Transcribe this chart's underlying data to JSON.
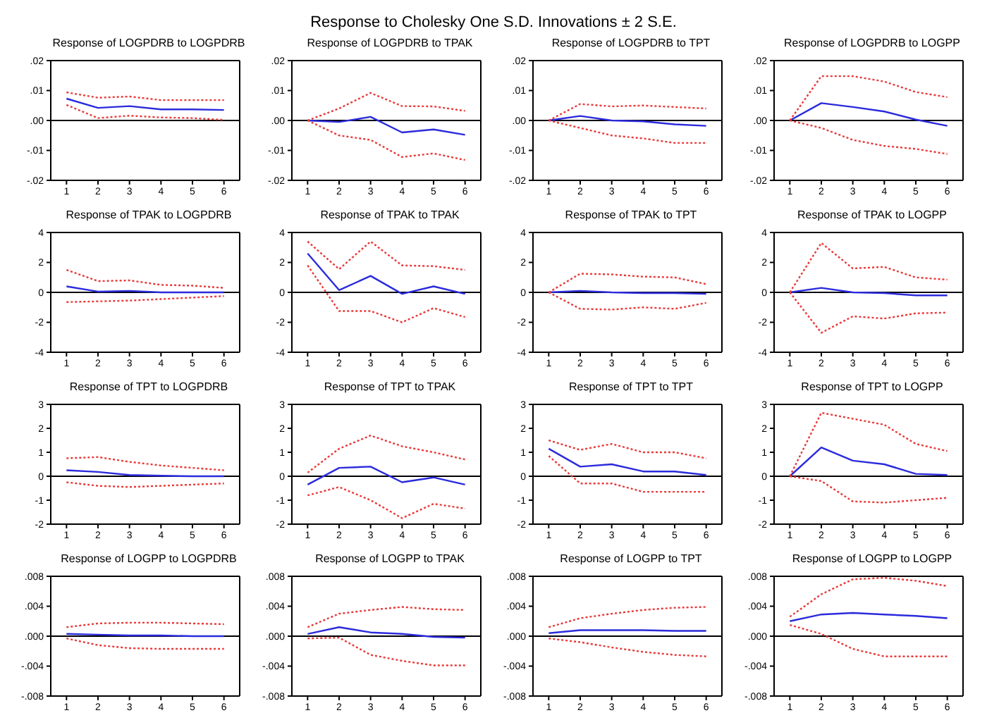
{
  "chart_data": [
    {
      "type": "line",
      "title": "Response of LOGPDRB to LOGPDRB",
      "annotations": [
        "Response to Cholesky One S.D. Innovations ± 2 S.E."
      ],
      "x": [
        1,
        2,
        3,
        4,
        5,
        6
      ],
      "xlim": [
        0.5,
        6.5
      ],
      "xticks": [
        1,
        2,
        3,
        4,
        5,
        6
      ],
      "ylim": [
        -0.02,
        0.02
      ],
      "yticks": [
        {
          "value": -0.02,
          "label": "-.02"
        },
        {
          "value": -0.01,
          "label": "-.01"
        },
        {
          "value": 0,
          "label": ".00"
        },
        {
          "value": 0.01,
          "label": ".01"
        },
        {
          "value": 0.02,
          "label": ".02"
        }
      ],
      "ref_lines": [
        {
          "axis": "y",
          "value": 0,
          "color": "#000000"
        }
      ],
      "series": [
        {
          "color": "#2b2bdc",
          "line_style": "solid",
          "values": [
            0.0073,
            0.0042,
            0.0048,
            0.0037,
            0.0037,
            0.0035
          ]
        },
        {
          "color": "#e83a3a",
          "line_style": "dotted",
          "values": [
            0.0094,
            0.0076,
            0.008,
            0.0068,
            0.0068,
            0.0068
          ]
        },
        {
          "color": "#e83a3a",
          "line_style": "dotted",
          "values": [
            0.0052,
            0.0008,
            0.0016,
            0.001,
            0.0008,
            0.0002
          ]
        }
      ]
    },
    {
      "type": "line",
      "title": "Response of LOGPDRB to TPAK",
      "x": [
        1,
        2,
        3,
        4,
        5,
        6
      ],
      "xlim": [
        0.5,
        6.5
      ],
      "xticks": [
        1,
        2,
        3,
        4,
        5,
        6
      ],
      "ylim": [
        -0.02,
        0.02
      ],
      "yticks": [
        {
          "value": -0.02,
          "label": "-.02"
        },
        {
          "value": -0.01,
          "label": "-.01"
        },
        {
          "value": 0,
          "label": ".00"
        },
        {
          "value": 0.01,
          "label": ".01"
        },
        {
          "value": 0.02,
          "label": ".02"
        }
      ],
      "ref_lines": [
        {
          "axis": "y",
          "value": 0,
          "color": "#000000"
        }
      ],
      "series": [
        {
          "color": "#2b2bdc",
          "line_style": "solid",
          "values": [
            0,
            -0.0005,
            0.0012,
            -0.004,
            -0.003,
            -0.0048
          ]
        },
        {
          "color": "#e83a3a",
          "line_style": "dotted",
          "values": [
            0,
            0.004,
            0.0092,
            0.0048,
            0.0047,
            0.0032
          ]
        },
        {
          "color": "#e83a3a",
          "line_style": "dotted",
          "values": [
            0,
            -0.005,
            -0.0065,
            -0.0122,
            -0.011,
            -0.0132
          ]
        }
      ]
    },
    {
      "type": "line",
      "title": "Response of LOGPDRB to TPT",
      "x": [
        1,
        2,
        3,
        4,
        5,
        6
      ],
      "xlim": [
        0.5,
        6.5
      ],
      "xticks": [
        1,
        2,
        3,
        4,
        5,
        6
      ],
      "ylim": [
        -0.02,
        0.02
      ],
      "yticks": [
        {
          "value": -0.02,
          "label": "-.02"
        },
        {
          "value": -0.01,
          "label": "-.01"
        },
        {
          "value": 0,
          "label": ".00"
        },
        {
          "value": 0.01,
          "label": ".01"
        },
        {
          "value": 0.02,
          "label": ".02"
        }
      ],
      "ref_lines": [
        {
          "axis": "y",
          "value": 0,
          "color": "#000000"
        }
      ],
      "series": [
        {
          "color": "#2b2bdc",
          "line_style": "solid",
          "values": [
            0,
            0.0015,
            0,
            -0.0003,
            -0.0013,
            -0.0018
          ]
        },
        {
          "color": "#e83a3a",
          "line_style": "dotted",
          "values": [
            0,
            0.0055,
            0.0047,
            0.005,
            0.0045,
            0.004
          ]
        },
        {
          "color": "#e83a3a",
          "line_style": "dotted",
          "values": [
            0,
            -0.0025,
            -0.005,
            -0.006,
            -0.0075,
            -0.0075
          ]
        }
      ]
    },
    {
      "type": "line",
      "title": "Response of LOGPDRB to LOGPP",
      "x": [
        1,
        2,
        3,
        4,
        5,
        6
      ],
      "xlim": [
        0.5,
        6.5
      ],
      "xticks": [
        1,
        2,
        3,
        4,
        5,
        6
      ],
      "ylim": [
        -0.02,
        0.02
      ],
      "yticks": [
        {
          "value": -0.02,
          "label": "-.02"
        },
        {
          "value": -0.01,
          "label": "-.01"
        },
        {
          "value": 0,
          "label": ".00"
        },
        {
          "value": 0.01,
          "label": ".01"
        },
        {
          "value": 0.02,
          "label": ".02"
        }
      ],
      "ref_lines": [
        {
          "axis": "y",
          "value": 0,
          "color": "#000000"
        }
      ],
      "series": [
        {
          "color": "#2b2bdc",
          "line_style": "solid",
          "values": [
            0,
            0.0058,
            0.0045,
            0.003,
            0.0003,
            -0.0018
          ]
        },
        {
          "color": "#e83a3a",
          "line_style": "dotted",
          "values": [
            0,
            0.0148,
            0.0148,
            0.013,
            0.0095,
            0.0078
          ]
        },
        {
          "color": "#e83a3a",
          "line_style": "dotted",
          "values": [
            0,
            -0.0025,
            -0.0065,
            -0.0085,
            -0.0095,
            -0.0112
          ]
        }
      ]
    },
    {
      "type": "line",
      "title": "Response of TPAK to LOGPDRB",
      "x": [
        1,
        2,
        3,
        4,
        5,
        6
      ],
      "xlim": [
        0.5,
        6.5
      ],
      "xticks": [
        1,
        2,
        3,
        4,
        5,
        6
      ],
      "ylim": [
        -4,
        4
      ],
      "yticks": [
        -4,
        -2,
        0,
        2,
        4
      ],
      "ref_lines": [
        {
          "axis": "y",
          "value": 0,
          "color": "#000000"
        }
      ],
      "series": [
        {
          "color": "#2b2bdc",
          "line_style": "solid",
          "values": [
            0.4,
            0.05,
            0.1,
            0,
            0,
            0
          ]
        },
        {
          "color": "#e83a3a",
          "line_style": "dotted",
          "values": [
            1.5,
            0.75,
            0.8,
            0.5,
            0.45,
            0.3
          ]
        },
        {
          "color": "#e83a3a",
          "line_style": "dotted",
          "values": [
            -0.65,
            -0.6,
            -0.55,
            -0.45,
            -0.35,
            -0.25
          ]
        }
      ]
    },
    {
      "type": "line",
      "title": "Response of TPAK to TPAK",
      "x": [
        1,
        2,
        3,
        4,
        5,
        6
      ],
      "xlim": [
        0.5,
        6.5
      ],
      "xticks": [
        1,
        2,
        3,
        4,
        5,
        6
      ],
      "ylim": [
        -4,
        4
      ],
      "yticks": [
        -4,
        -2,
        0,
        2,
        4
      ],
      "ref_lines": [
        {
          "axis": "y",
          "value": 0,
          "color": "#000000"
        }
      ],
      "series": [
        {
          "color": "#2b2bdc",
          "line_style": "solid",
          "values": [
            2.6,
            0.15,
            1.1,
            -0.1,
            0.4,
            -0.1
          ]
        },
        {
          "color": "#e83a3a",
          "line_style": "dotted",
          "values": [
            3.4,
            1.55,
            3.4,
            1.8,
            1.75,
            1.5
          ]
        },
        {
          "color": "#e83a3a",
          "line_style": "dotted",
          "values": [
            1.8,
            -1.25,
            -1.25,
            -2.0,
            -1.05,
            -1.65
          ]
        }
      ]
    },
    {
      "type": "line",
      "title": "Response of TPAK to TPT",
      "x": [
        1,
        2,
        3,
        4,
        5,
        6
      ],
      "xlim": [
        0.5,
        6.5
      ],
      "xticks": [
        1,
        2,
        3,
        4,
        5,
        6
      ],
      "ylim": [
        -4,
        4
      ],
      "yticks": [
        -4,
        -2,
        0,
        2,
        4
      ],
      "ref_lines": [
        {
          "axis": "y",
          "value": 0,
          "color": "#000000"
        }
      ],
      "series": [
        {
          "color": "#2b2bdc",
          "line_style": "solid",
          "values": [
            0,
            0.1,
            0,
            -0.05,
            -0.05,
            -0.1
          ]
        },
        {
          "color": "#e83a3a",
          "line_style": "dotted",
          "values": [
            0,
            1.25,
            1.2,
            1.05,
            1.0,
            0.55
          ]
        },
        {
          "color": "#e83a3a",
          "line_style": "dotted",
          "values": [
            0,
            -1.1,
            -1.15,
            -1.0,
            -1.1,
            -0.7
          ]
        }
      ]
    },
    {
      "type": "line",
      "title": "Response of TPAK to LOGPP",
      "x": [
        1,
        2,
        3,
        4,
        5,
        6
      ],
      "xlim": [
        0.5,
        6.5
      ],
      "xticks": [
        1,
        2,
        3,
        4,
        5,
        6
      ],
      "ylim": [
        -4,
        4
      ],
      "yticks": [
        -4,
        -2,
        0,
        2,
        4
      ],
      "ref_lines": [
        {
          "axis": "y",
          "value": 0,
          "color": "#000000"
        }
      ],
      "series": [
        {
          "color": "#2b2bdc",
          "line_style": "solid",
          "values": [
            0,
            0.3,
            0,
            -0.05,
            -0.2,
            -0.2
          ]
        },
        {
          "color": "#e83a3a",
          "line_style": "dotted",
          "values": [
            0,
            3.3,
            1.6,
            1.7,
            1.0,
            0.85
          ]
        },
        {
          "color": "#e83a3a",
          "line_style": "dotted",
          "values": [
            0,
            -2.7,
            -1.6,
            -1.75,
            -1.4,
            -1.35
          ]
        }
      ]
    },
    {
      "type": "line",
      "title": "Response of TPT to LOGPDRB",
      "x": [
        1,
        2,
        3,
        4,
        5,
        6
      ],
      "xlim": [
        0.5,
        6.5
      ],
      "xticks": [
        1,
        2,
        3,
        4,
        5,
        6
      ],
      "ylim": [
        -2,
        3
      ],
      "yticks": [
        -2,
        -1,
        0,
        1,
        2,
        3
      ],
      "ref_lines": [
        {
          "axis": "y",
          "value": 0,
          "color": "#000000"
        }
      ],
      "series": [
        {
          "color": "#2b2bdc",
          "line_style": "solid",
          "values": [
            0.25,
            0.18,
            0.05,
            0.02,
            0,
            0
          ]
        },
        {
          "color": "#e83a3a",
          "line_style": "dotted",
          "values": [
            0.75,
            0.8,
            0.6,
            0.45,
            0.35,
            0.25
          ]
        },
        {
          "color": "#e83a3a",
          "line_style": "dotted",
          "values": [
            -0.25,
            -0.4,
            -0.45,
            -0.4,
            -0.35,
            -0.3
          ]
        }
      ]
    },
    {
      "type": "line",
      "title": "Response of TPT to TPAK",
      "x": [
        1,
        2,
        3,
        4,
        5,
        6
      ],
      "xlim": [
        0.5,
        6.5
      ],
      "xticks": [
        1,
        2,
        3,
        4,
        5,
        6
      ],
      "ylim": [
        -2,
        3
      ],
      "yticks": [
        -2,
        -1,
        0,
        1,
        2,
        3
      ],
      "ref_lines": [
        {
          "axis": "y",
          "value": 0,
          "color": "#000000"
        }
      ],
      "series": [
        {
          "color": "#2b2bdc",
          "line_style": "solid",
          "values": [
            -0.35,
            0.35,
            0.4,
            -0.25,
            -0.05,
            -0.35
          ]
        },
        {
          "color": "#e83a3a",
          "line_style": "dotted",
          "values": [
            0.15,
            1.15,
            1.7,
            1.25,
            1.0,
            0.7
          ]
        },
        {
          "color": "#e83a3a",
          "line_style": "dotted",
          "values": [
            -0.8,
            -0.45,
            -1.0,
            -1.75,
            -1.15,
            -1.35
          ]
        }
      ]
    },
    {
      "type": "line",
      "title": "Response of TPT to TPT",
      "x": [
        1,
        2,
        3,
        4,
        5,
        6
      ],
      "xlim": [
        0.5,
        6.5
      ],
      "xticks": [
        1,
        2,
        3,
        4,
        5,
        6
      ],
      "ylim": [
        -2,
        3
      ],
      "yticks": [
        -2,
        -1,
        0,
        1,
        2,
        3
      ],
      "ref_lines": [
        {
          "axis": "y",
          "value": 0,
          "color": "#000000"
        }
      ],
      "series": [
        {
          "color": "#2b2bdc",
          "line_style": "solid",
          "values": [
            1.15,
            0.4,
            0.5,
            0.2,
            0.2,
            0.05
          ]
        },
        {
          "color": "#e83a3a",
          "line_style": "dotted",
          "values": [
            1.5,
            1.1,
            1.35,
            1.0,
            1.0,
            0.75
          ]
        },
        {
          "color": "#e83a3a",
          "line_style": "dotted",
          "values": [
            0.85,
            -0.3,
            -0.3,
            -0.65,
            -0.65,
            -0.65
          ]
        }
      ]
    },
    {
      "type": "line",
      "title": "Response of TPT to LOGPP",
      "x": [
        1,
        2,
        3,
        4,
        5,
        6
      ],
      "xlim": [
        0.5,
        6.5
      ],
      "xticks": [
        1,
        2,
        3,
        4,
        5,
        6
      ],
      "ylim": [
        -2,
        3
      ],
      "yticks": [
        -2,
        -1,
        0,
        1,
        2,
        3
      ],
      "ref_lines": [
        {
          "axis": "y",
          "value": 0,
          "color": "#000000"
        }
      ],
      "series": [
        {
          "color": "#2b2bdc",
          "line_style": "solid",
          "values": [
            0,
            1.2,
            0.65,
            0.5,
            0.1,
            0.05
          ]
        },
        {
          "color": "#e83a3a",
          "line_style": "dotted",
          "values": [
            0,
            2.65,
            2.4,
            2.15,
            1.35,
            1.05
          ]
        },
        {
          "color": "#e83a3a",
          "line_style": "dotted",
          "values": [
            0,
            -0.2,
            -1.05,
            -1.1,
            -1.0,
            -0.9
          ]
        }
      ]
    },
    {
      "type": "line",
      "title": "Response of LOGPP to LOGPDRB",
      "x": [
        1,
        2,
        3,
        4,
        5,
        6
      ],
      "xlim": [
        0.5,
        6.5
      ],
      "xticks": [
        1,
        2,
        3,
        4,
        5,
        6
      ],
      "ylim": [
        -0.008,
        0.008
      ],
      "yticks": [
        {
          "value": -0.008,
          "label": "-.008"
        },
        {
          "value": -0.004,
          "label": "-.004"
        },
        {
          "value": 0,
          "label": ".000"
        },
        {
          "value": 0.004,
          "label": ".004"
        },
        {
          "value": 0.008,
          "label": ".008"
        }
      ],
      "ref_lines": [
        {
          "axis": "y",
          "value": 0,
          "color": "#000000"
        }
      ],
      "series": [
        {
          "color": "#2b2bdc",
          "line_style": "solid",
          "values": [
            0.0003,
            0.0002,
            0.0001,
            0.0001,
            0,
            0
          ]
        },
        {
          "color": "#e83a3a",
          "line_style": "dotted",
          "values": [
            0.0012,
            0.0017,
            0.0018,
            0.0018,
            0.0017,
            0.0016
          ]
        },
        {
          "color": "#e83a3a",
          "line_style": "dotted",
          "values": [
            -0.0003,
            -0.0012,
            -0.0016,
            -0.0017,
            -0.0017,
            -0.0017
          ]
        }
      ]
    },
    {
      "type": "line",
      "title": "Response of LOGPP to TPAK",
      "x": [
        1,
        2,
        3,
        4,
        5,
        6
      ],
      "xlim": [
        0.5,
        6.5
      ],
      "xticks": [
        1,
        2,
        3,
        4,
        5,
        6
      ],
      "ylim": [
        -0.008,
        0.008
      ],
      "yticks": [
        {
          "value": -0.008,
          "label": "-.008"
        },
        {
          "value": -0.004,
          "label": "-.004"
        },
        {
          "value": 0,
          "label": ".000"
        },
        {
          "value": 0.004,
          "label": ".004"
        },
        {
          "value": 0.008,
          "label": ".008"
        }
      ],
      "ref_lines": [
        {
          "axis": "y",
          "value": 0,
          "color": "#000000"
        }
      ],
      "series": [
        {
          "color": "#2b2bdc",
          "line_style": "solid",
          "values": [
            0.0003,
            0.0012,
            0.0005,
            0.0003,
            -0.0001,
            -0.0002
          ]
        },
        {
          "color": "#e83a3a",
          "line_style": "dotted",
          "values": [
            0.0012,
            0.003,
            0.0035,
            0.0039,
            0.0036,
            0.0035
          ]
        },
        {
          "color": "#e83a3a",
          "line_style": "dotted",
          "values": [
            -0.0003,
            -0.0002,
            -0.0025,
            -0.0033,
            -0.0039,
            -0.0039
          ]
        }
      ]
    },
    {
      "type": "line",
      "title": "Response of LOGPP to TPT",
      "x": [
        1,
        2,
        3,
        4,
        5,
        6
      ],
      "xlim": [
        0.5,
        6.5
      ],
      "xticks": [
        1,
        2,
        3,
        4,
        5,
        6
      ],
      "ylim": [
        -0.008,
        0.008
      ],
      "yticks": [
        {
          "value": -0.008,
          "label": "-.008"
        },
        {
          "value": -0.004,
          "label": "-.004"
        },
        {
          "value": 0,
          "label": ".000"
        },
        {
          "value": 0.004,
          "label": ".004"
        },
        {
          "value": 0.008,
          "label": ".008"
        }
      ],
      "ref_lines": [
        {
          "axis": "y",
          "value": 0,
          "color": "#000000"
        }
      ],
      "series": [
        {
          "color": "#2b2bdc",
          "line_style": "solid",
          "values": [
            0.0004,
            0.0008,
            0.0008,
            0.0008,
            0.0007,
            0.0007
          ]
        },
        {
          "color": "#e83a3a",
          "line_style": "dotted",
          "values": [
            0.0012,
            0.0024,
            0.003,
            0.0035,
            0.0038,
            0.0039
          ]
        },
        {
          "color": "#e83a3a",
          "line_style": "dotted",
          "values": [
            -0.0003,
            -0.0008,
            -0.0015,
            -0.0021,
            -0.0025,
            -0.0027
          ]
        }
      ]
    },
    {
      "type": "line",
      "title": "Response of LOGPP to LOGPP",
      "x": [
        1,
        2,
        3,
        4,
        5,
        6
      ],
      "xlim": [
        0.5,
        6.5
      ],
      "xticks": [
        1,
        2,
        3,
        4,
        5,
        6
      ],
      "ylim": [
        -0.008,
        0.008
      ],
      "yticks": [
        {
          "value": -0.008,
          "label": "-.008"
        },
        {
          "value": -0.004,
          "label": "-.004"
        },
        {
          "value": 0,
          "label": ".000"
        },
        {
          "value": 0.004,
          "label": ".004"
        },
        {
          "value": 0.008,
          "label": ".008"
        }
      ],
      "ref_lines": [
        {
          "axis": "y",
          "value": 0,
          "color": "#000000"
        }
      ],
      "series": [
        {
          "color": "#2b2bdc",
          "line_style": "solid",
          "values": [
            0.002,
            0.0029,
            0.0031,
            0.0029,
            0.0027,
            0.0024
          ]
        },
        {
          "color": "#e83a3a",
          "line_style": "dotted",
          "values": [
            0.0026,
            0.0056,
            0.0076,
            0.0078,
            0.0074,
            0.0067
          ]
        },
        {
          "color": "#e83a3a",
          "line_style": "dotted",
          "values": [
            0.0015,
            0.0003,
            -0.0017,
            -0.0027,
            -0.0027,
            -0.0027
          ]
        }
      ]
    }
  ]
}
